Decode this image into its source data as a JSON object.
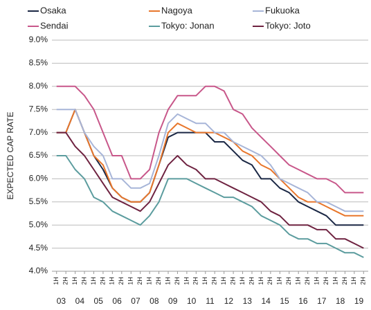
{
  "chart_data": {
    "type": "line",
    "y_axis_label": "EXPECTED CAP RATE",
    "categories": [
      "1H",
      "2H",
      "1H",
      "2H",
      "1H",
      "2H",
      "1H",
      "2H",
      "1H",
      "2H",
      "1H",
      "2H",
      "1H",
      "2H",
      "1H",
      "2H",
      "1H",
      "2H",
      "1H",
      "2H",
      "1H",
      "2H",
      "1H",
      "2H",
      "1H",
      "2H",
      "1H",
      "2H",
      "1H",
      "2H",
      "1H",
      "2H",
      "1H",
      "2H"
    ],
    "year_labels": [
      "03",
      "04",
      "05",
      "06",
      "07",
      "08",
      "09",
      "10",
      "11",
      "12",
      "13",
      "14",
      "15",
      "16",
      "17",
      "18",
      "19"
    ],
    "series": [
      {
        "name": "Osaka",
        "color": "#1a2744",
        "values": [
          7.0,
          7.0,
          7.5,
          7.0,
          6.5,
          6.2,
          5.8,
          5.6,
          5.5,
          5.5,
          5.7,
          6.3,
          6.9,
          7.0,
          7.0,
          7.0,
          7.0,
          6.8,
          6.8,
          6.6,
          6.4,
          6.3,
          6.0,
          6.0,
          5.8,
          5.7,
          5.5,
          5.4,
          5.3,
          5.2,
          5.0,
          5.0,
          5.0,
          5.0
        ]
      },
      {
        "name": "Nagoya",
        "color": "#e8762b",
        "values": [
          7.0,
          7.0,
          7.5,
          7.0,
          6.5,
          6.3,
          5.8,
          5.6,
          5.5,
          5.5,
          5.7,
          6.3,
          7.0,
          7.2,
          7.1,
          7.0,
          7.0,
          7.0,
          6.9,
          6.8,
          6.6,
          6.5,
          6.3,
          6.2,
          6.0,
          5.8,
          5.6,
          5.5,
          5.5,
          5.4,
          5.3,
          5.2,
          5.2,
          5.2
        ]
      },
      {
        "name": "Fukuoka",
        "color": "#a7b5d8",
        "values": [
          7.5,
          7.5,
          7.5,
          7.0,
          6.7,
          6.5,
          6.0,
          6.0,
          5.8,
          5.8,
          5.9,
          6.5,
          7.2,
          7.4,
          7.3,
          7.2,
          7.2,
          7.0,
          7.0,
          6.8,
          6.7,
          6.6,
          6.5,
          6.3,
          6.0,
          5.9,
          5.8,
          5.7,
          5.5,
          5.5,
          5.4,
          5.3,
          5.3,
          5.3
        ]
      },
      {
        "name": "Sendai",
        "color": "#c8578a",
        "values": [
          8.0,
          8.0,
          8.0,
          7.8,
          7.5,
          7.0,
          6.5,
          6.5,
          6.0,
          6.0,
          6.2,
          7.0,
          7.5,
          7.8,
          7.8,
          7.8,
          8.0,
          8.0,
          7.9,
          7.5,
          7.4,
          7.1,
          6.9,
          6.7,
          6.5,
          6.3,
          6.2,
          6.1,
          6.0,
          6.0,
          5.9,
          5.7,
          5.7,
          5.7
        ]
      },
      {
        "name": "Tokyo: Jonan",
        "color": "#5b9c9e",
        "values": [
          6.5,
          6.5,
          6.2,
          6.0,
          5.6,
          5.5,
          5.3,
          5.2,
          5.1,
          5.0,
          5.2,
          5.5,
          6.0,
          6.0,
          6.0,
          5.9,
          5.8,
          5.7,
          5.6,
          5.6,
          5.5,
          5.4,
          5.2,
          5.1,
          5.0,
          4.8,
          4.7,
          4.7,
          4.6,
          4.6,
          4.5,
          4.4,
          4.4,
          4.3
        ]
      },
      {
        "name": "Tokyo: Joto",
        "color": "#6e2240",
        "values": [
          7.0,
          7.0,
          6.7,
          6.5,
          6.2,
          5.9,
          5.6,
          5.5,
          5.4,
          5.3,
          5.5,
          5.9,
          6.3,
          6.5,
          6.3,
          6.2,
          6.0,
          6.0,
          5.9,
          5.8,
          5.7,
          5.6,
          5.5,
          5.3,
          5.2,
          5.0,
          5.0,
          5.0,
          4.9,
          4.9,
          4.7,
          4.7,
          4.6,
          4.5
        ]
      }
    ],
    "ylim": [
      4.0,
      9.0
    ],
    "yticks": [
      {
        "value": 4.0,
        "label": "4.0%"
      },
      {
        "value": 4.5,
        "label": "4.5%"
      },
      {
        "value": 5.0,
        "label": "5.0%"
      },
      {
        "value": 5.5,
        "label": "5.5%"
      },
      {
        "value": 6.0,
        "label": "6.0%"
      },
      {
        "value": 6.5,
        "label": "6.5%"
      },
      {
        "value": 7.0,
        "label": "7.0%"
      },
      {
        "value": 7.5,
        "label": "7.5%"
      },
      {
        "value": 8.0,
        "label": "8.0%"
      },
      {
        "value": 8.5,
        "label": "8.5%"
      },
      {
        "value": 9.0,
        "label": "9.0%"
      }
    ],
    "grid": true
  }
}
